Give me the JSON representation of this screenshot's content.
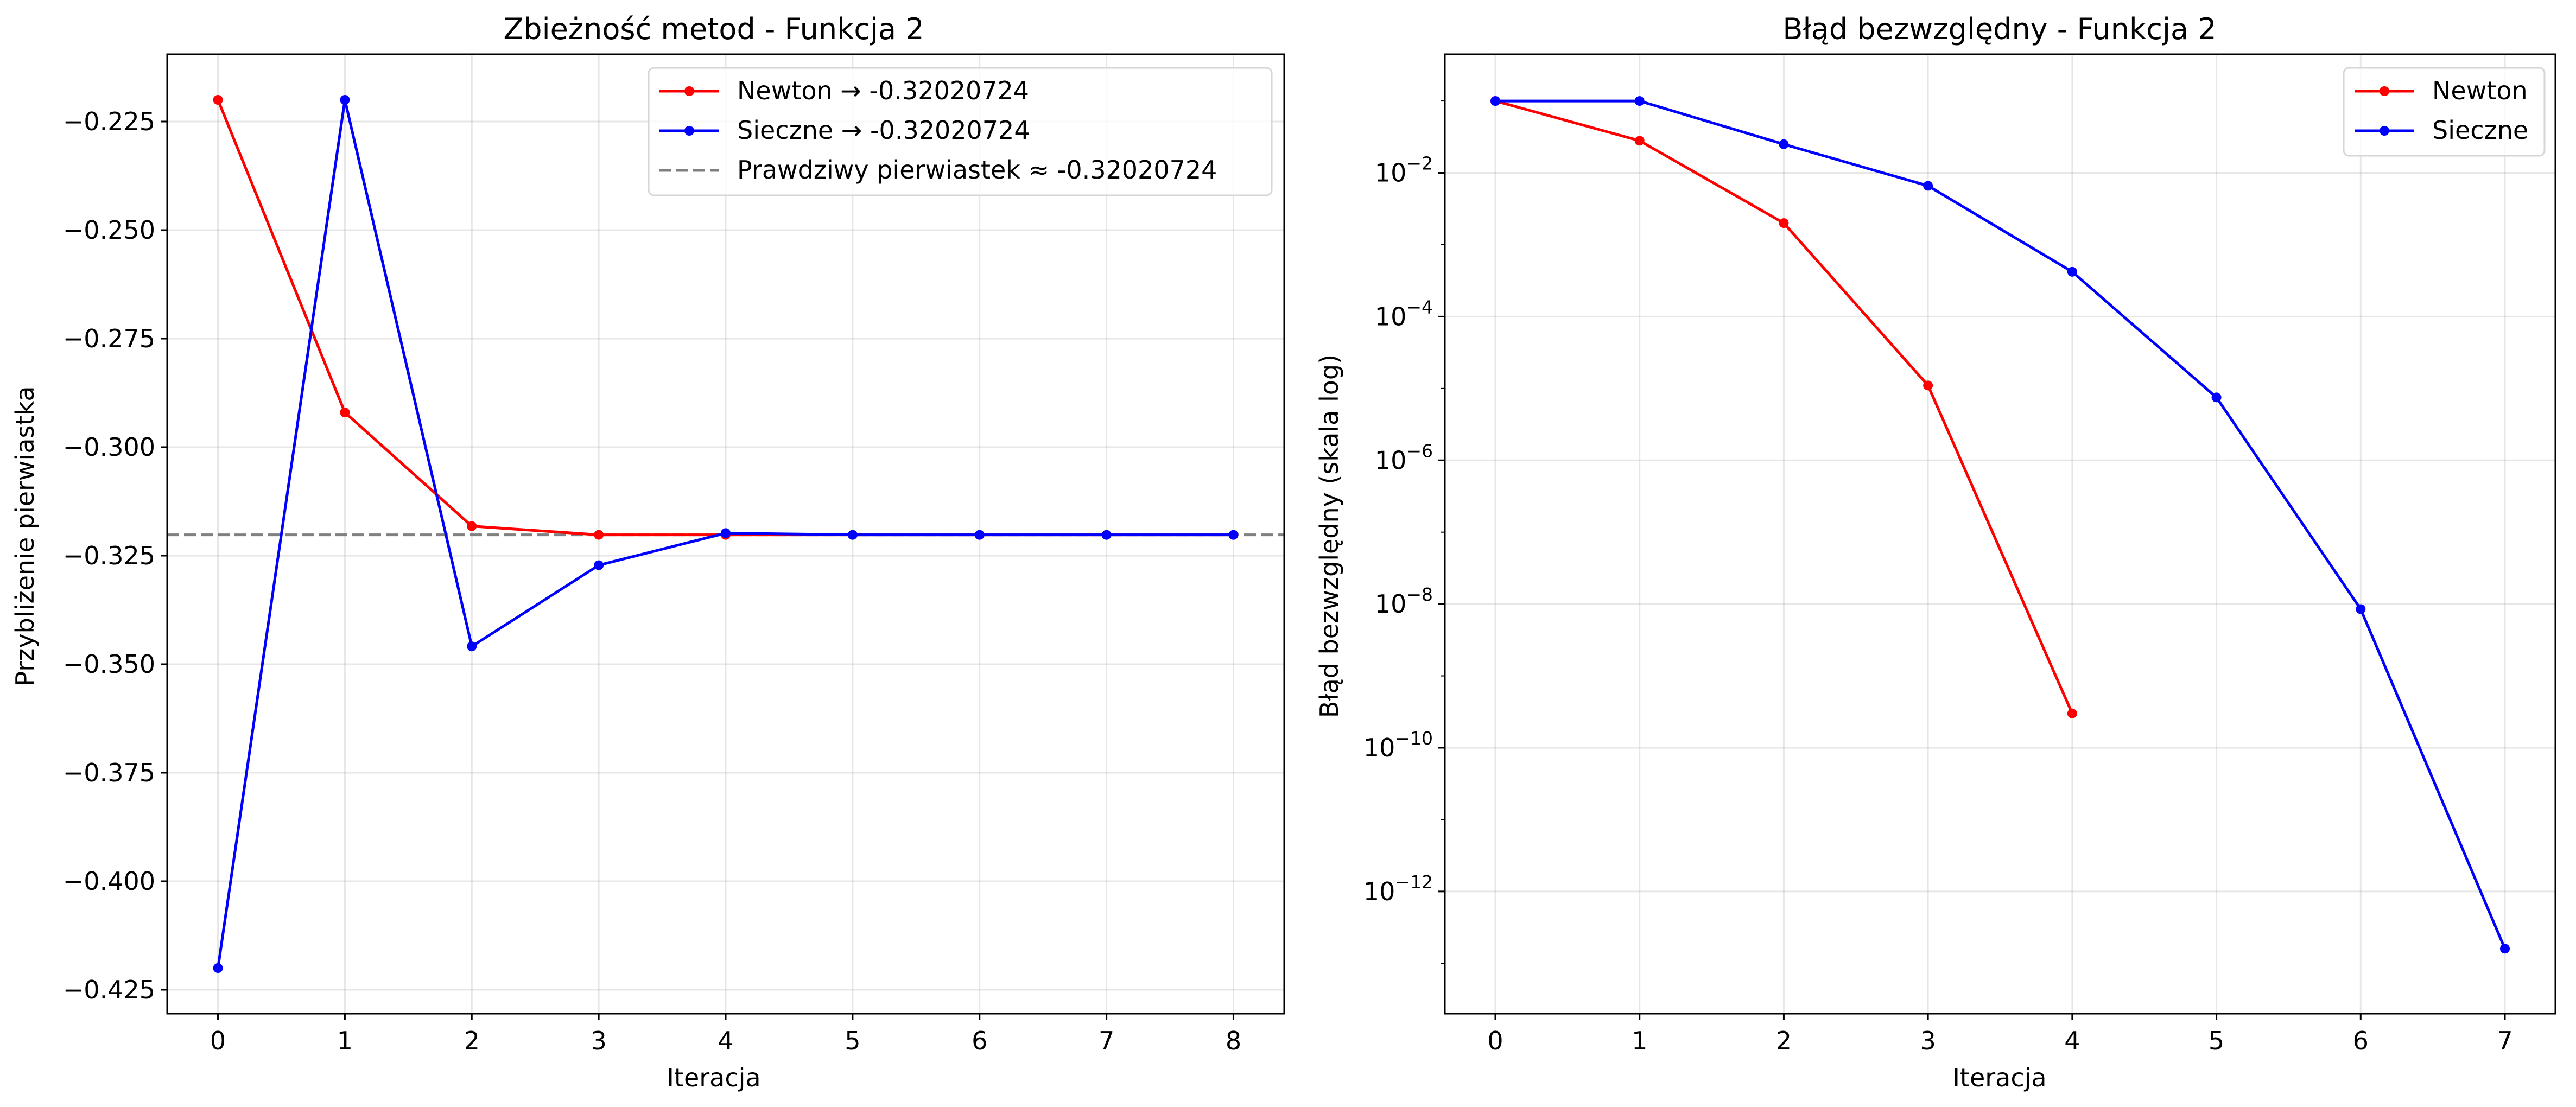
{
  "chart_data": [
    {
      "type": "line",
      "title": "Zbieżność metod - Funkcja 2",
      "xlabel": "Iteracja",
      "ylabel": "Przybliżenie pierwiastka",
      "xlim": [
        -0.4,
        8.4
      ],
      "ylim": [
        -0.4305,
        -0.2095
      ],
      "xticks": [
        0,
        1,
        2,
        3,
        4,
        5,
        6,
        7,
        8
      ],
      "xtick_labels": [
        "0",
        "1",
        "2",
        "3",
        "4",
        "5",
        "6",
        "7",
        "8"
      ],
      "yticks": [
        -0.225,
        -0.25,
        -0.275,
        -0.3,
        -0.325,
        -0.35,
        -0.375,
        -0.4,
        -0.425
      ],
      "ytick_labels": [
        "−0.225",
        "−0.250",
        "−0.275",
        "−0.300",
        "−0.325",
        "−0.350",
        "−0.375",
        "−0.400",
        "−0.425"
      ],
      "grid": true,
      "legend_position": "top-right",
      "series": [
        {
          "name": "Newton → -0.32020724",
          "color": "#ff0000",
          "marker": "circle",
          "x": [
            0,
            1,
            2,
            3,
            4,
            5,
            6,
            7,
            8
          ],
          "values": [
            -0.22,
            -0.292,
            -0.3182,
            -0.3202,
            -0.32021,
            -0.32021,
            -0.32021,
            -0.32021,
            -0.32021
          ]
        },
        {
          "name": "Sieczne → -0.32020724",
          "color": "#0000ff",
          "marker": "circle",
          "x": [
            0,
            1,
            2,
            3,
            4,
            5,
            6,
            7,
            8
          ],
          "values": [
            -0.42,
            -0.22,
            -0.3459,
            -0.3272,
            -0.3198,
            -0.32021,
            -0.32021,
            -0.32021,
            -0.32021
          ]
        }
      ],
      "reference_line": {
        "name": "Prawdziwy pierwiastek ≈ -0.32020724",
        "value": -0.32020724,
        "color": "#808080",
        "style": "dashed"
      }
    },
    {
      "type": "line",
      "title": "Błąd bezwzględny - Funkcja 2",
      "xlabel": "Iteracja",
      "ylabel": "Błąd bezwzględny (skala log)",
      "yscale": "log",
      "xlim": [
        -0.35,
        7.35
      ],
      "ylim_log10": [
        -13.7,
        -0.35
      ],
      "xticks": [
        0,
        1,
        2,
        3,
        4,
        5,
        6,
        7
      ],
      "xtick_labels": [
        "0",
        "1",
        "2",
        "3",
        "4",
        "5",
        "6",
        "7"
      ],
      "yticks": [
        -2,
        -4,
        -6,
        -8,
        -10,
        -12
      ],
      "ytick_labels": [
        "10",
        "10",
        "10",
        "10",
        "10",
        "10"
      ],
      "ytick_exponents": [
        "−2",
        "−4",
        "−6",
        "−8",
        "−10",
        "−12"
      ],
      "grid": true,
      "legend_position": "top-right",
      "series": [
        {
          "name": "Newton",
          "color": "#ff0000",
          "marker": "circle",
          "x": [
            0,
            1,
            2,
            3,
            4
          ],
          "values": [
            0.1,
            0.028,
            0.002,
            1.1e-05,
            3e-10
          ]
        },
        {
          "name": "Sieczne",
          "color": "#0000ff",
          "marker": "circle",
          "x": [
            0,
            1,
            2,
            3,
            4,
            5,
            6,
            7
          ],
          "values": [
            0.1,
            0.1,
            0.025,
            0.0066,
            0.00042,
            7.5e-06,
            8.5e-09,
            1.6e-13
          ]
        }
      ]
    }
  ]
}
